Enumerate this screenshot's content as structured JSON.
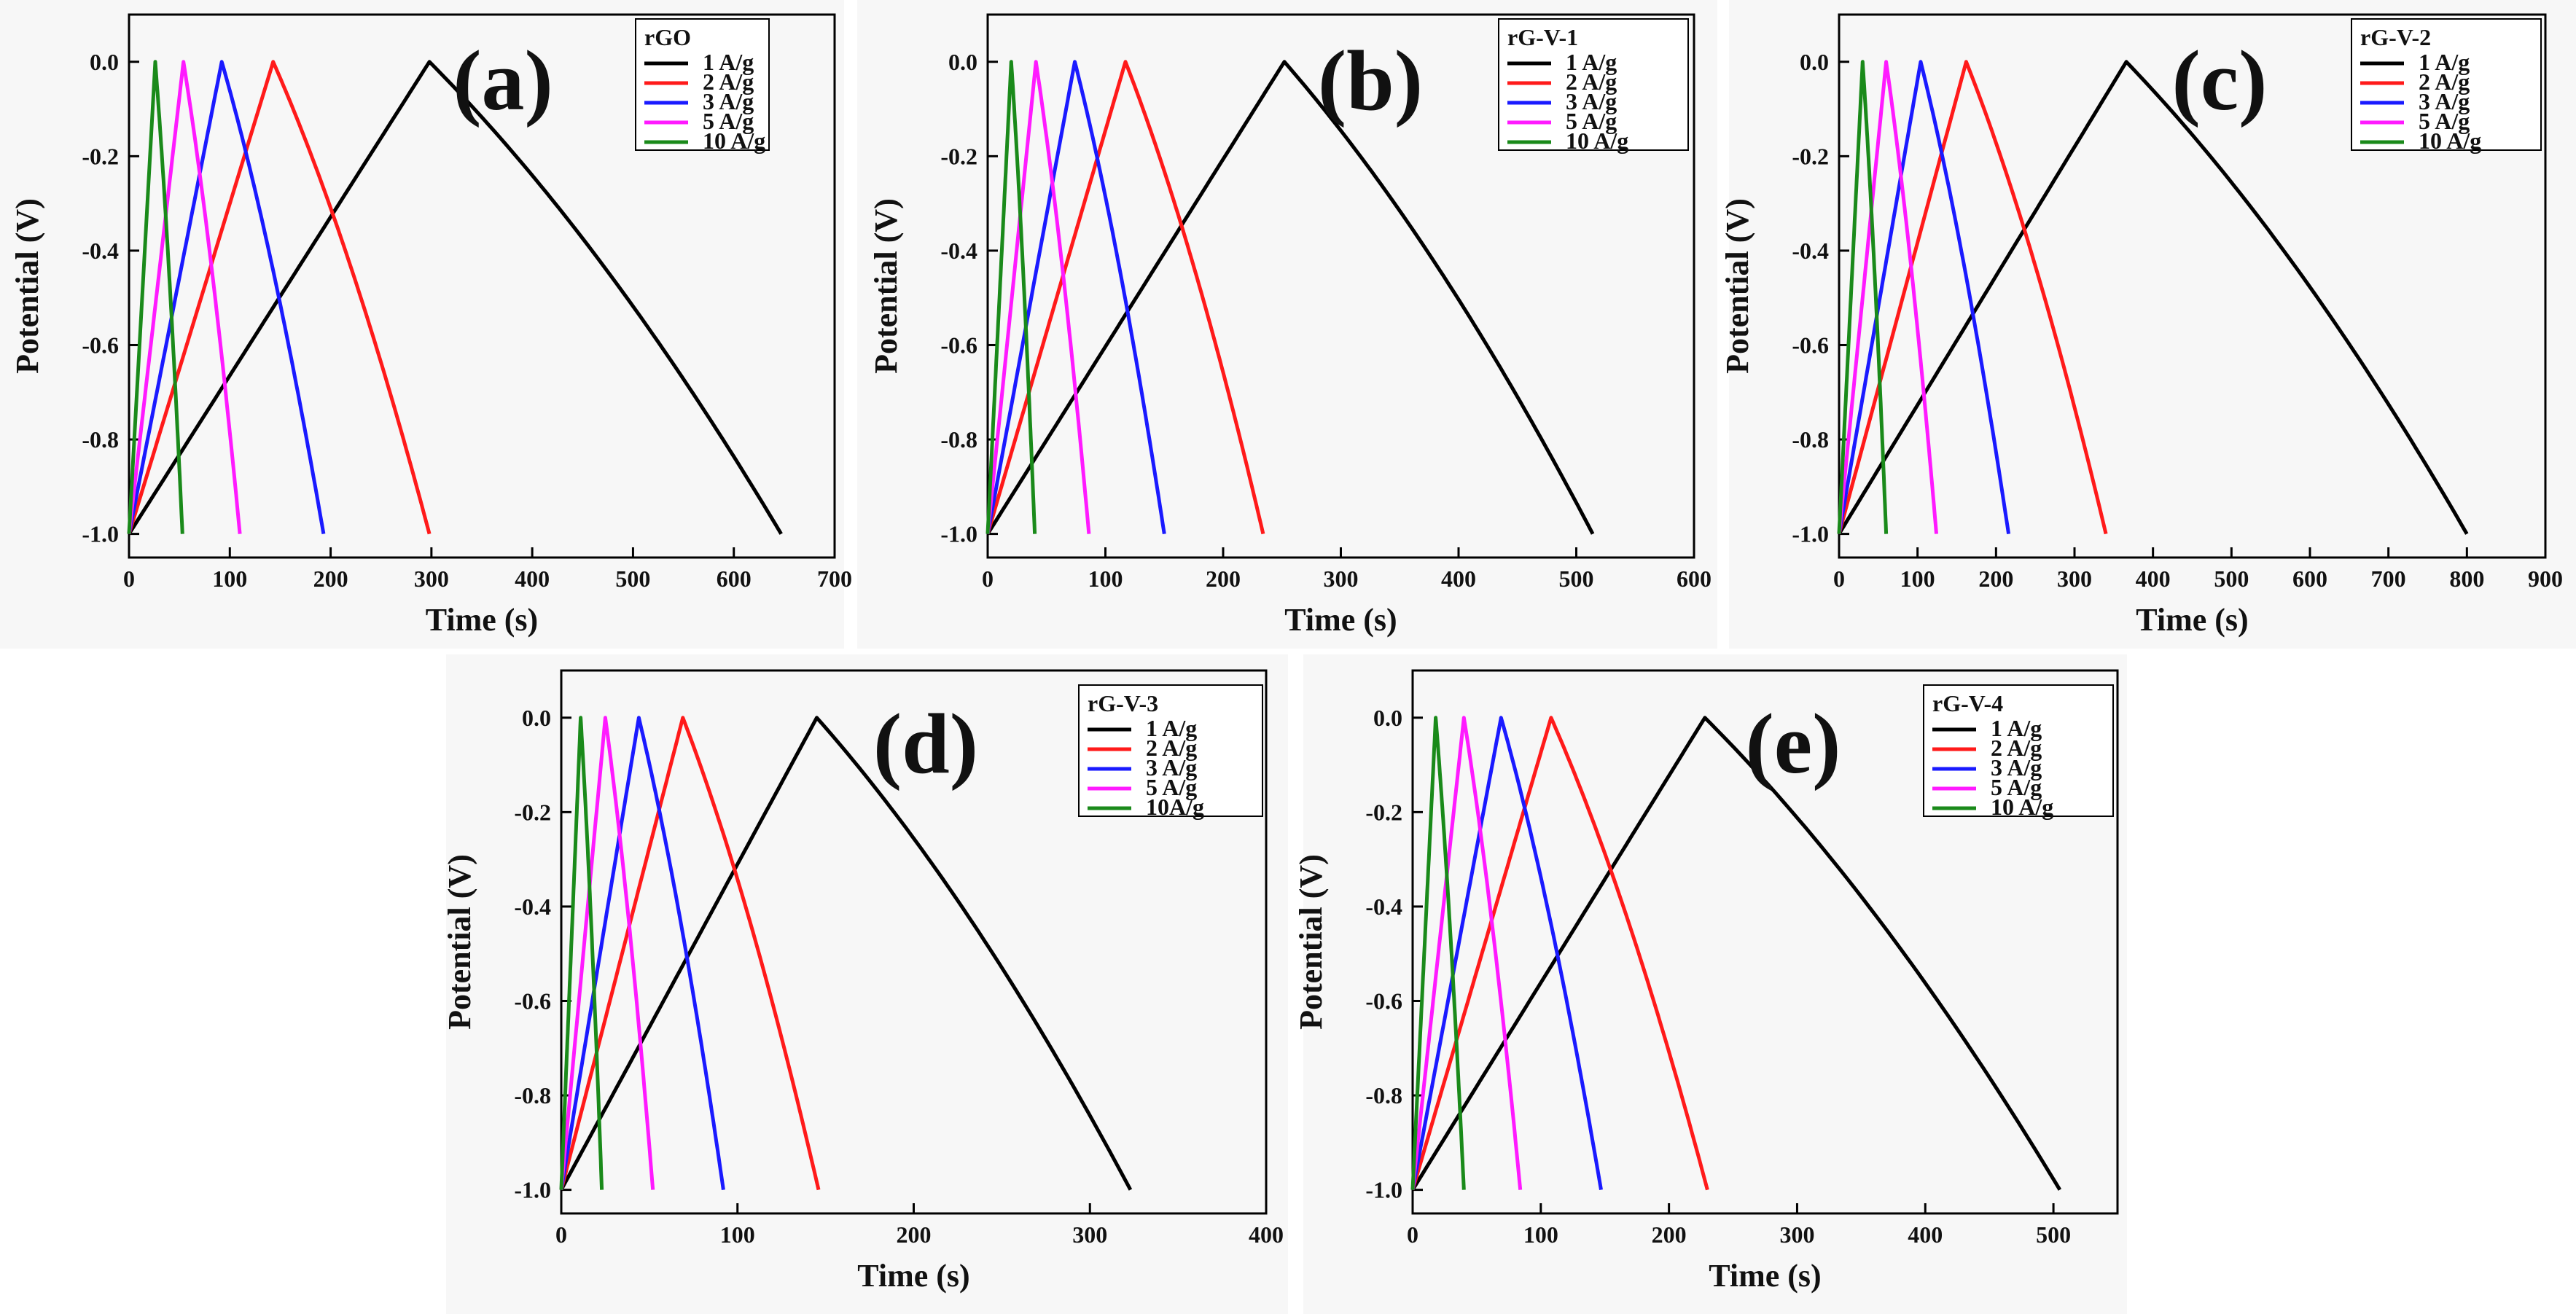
{
  "chart_data": [
    {
      "type": "line",
      "panel_label": "(a)",
      "legend_title": "rGO",
      "xlabel": "Time (s)",
      "ylabel": "Potential (V)",
      "xlim": [
        0,
        700
      ],
      "ylim": [
        -1.05,
        0.1
      ],
      "xticks": [
        0,
        100,
        200,
        300,
        400,
        500,
        600,
        700
      ],
      "yticks": [
        0.0,
        -0.2,
        -0.4,
        -0.6,
        -0.8,
        -1.0
      ],
      "ytick_labels": [
        "0.0",
        "-0.2",
        "-0.4",
        "-0.6",
        "-0.8",
        "-1.0"
      ],
      "series": [
        {
          "name": "1 A/g",
          "color": "#000000",
          "peak_time": 298,
          "end_time": 647
        },
        {
          "name": "2 A/g",
          "color": "#ff1a1a",
          "peak_time": 143,
          "end_time": 298
        },
        {
          "name": "3 A/g",
          "color": "#1a1aff",
          "peak_time": 92,
          "end_time": 193
        },
        {
          "name": "5 A/g",
          "color": "#ff1aff",
          "peak_time": 54,
          "end_time": 110
        },
        {
          "name": "10 A/g",
          "color": "#1a8a1a",
          "peak_time": 26,
          "end_time": 53
        }
      ]
    },
    {
      "type": "line",
      "panel_label": "(b)",
      "legend_title": "rG-V-1",
      "xlabel": "Time (s)",
      "ylabel": "Potential (V)",
      "xlim": [
        0,
        600
      ],
      "ylim": [
        -1.05,
        0.1
      ],
      "xticks": [
        0,
        100,
        200,
        300,
        400,
        500,
        600
      ],
      "yticks": [
        0.0,
        -0.2,
        -0.4,
        -0.6,
        -0.8,
        -1.0
      ],
      "ytick_labels": [
        "0.0",
        "-0.2",
        "-0.4",
        "-0.6",
        "-0.8",
        "-1.0"
      ],
      "series": [
        {
          "name": "1 A/g",
          "color": "#000000",
          "peak_time": 252,
          "end_time": 514
        },
        {
          "name": "2 A/g",
          "color": "#ff1a1a",
          "peak_time": 117,
          "end_time": 234
        },
        {
          "name": "3 A/g",
          "color": "#1a1aff",
          "peak_time": 74,
          "end_time": 150
        },
        {
          "name": "5 A/g",
          "color": "#ff1aff",
          "peak_time": 41,
          "end_time": 86
        },
        {
          "name": "10 A/g",
          "color": "#1a8a1a",
          "peak_time": 20,
          "end_time": 40
        }
      ]
    },
    {
      "type": "line",
      "panel_label": "(c)",
      "legend_title": "rG-V-2",
      "xlabel": "Time (s)",
      "ylabel": "Potential (V)",
      "xlim": [
        0,
        900
      ],
      "ylim": [
        -1.05,
        0.1
      ],
      "xticks": [
        0,
        100,
        200,
        300,
        400,
        500,
        600,
        700,
        800,
        900
      ],
      "yticks": [
        0.0,
        -0.2,
        -0.4,
        -0.6,
        -0.8,
        -1.0
      ],
      "ytick_labels": [
        "0.0",
        "-0.2",
        "-0.4",
        "-0.6",
        "-0.8",
        "-1.0"
      ],
      "series": [
        {
          "name": "1 A/g",
          "color": "#000000",
          "peak_time": 366,
          "end_time": 800
        },
        {
          "name": "2 A/g",
          "color": "#ff1a1a",
          "peak_time": 162,
          "end_time": 340
        },
        {
          "name": "3 A/g",
          "color": "#1a1aff",
          "peak_time": 104,
          "end_time": 216
        },
        {
          "name": "5 A/g",
          "color": "#ff1aff",
          "peak_time": 60,
          "end_time": 124
        },
        {
          "name": "10 A/g",
          "color": "#1a8a1a",
          "peak_time": 30,
          "end_time": 60
        }
      ]
    },
    {
      "type": "line",
      "panel_label": "(d)",
      "legend_title": "rG-V-3",
      "xlabel": "Time (s)",
      "ylabel": "Potential (V)",
      "xlim": [
        0,
        400
      ],
      "ylim": [
        -1.05,
        0.1
      ],
      "xticks": [
        0,
        100,
        200,
        300,
        400
      ],
      "yticks": [
        0.0,
        -0.2,
        -0.4,
        -0.6,
        -0.8,
        -1.0
      ],
      "ytick_labels": [
        "0.0",
        "-0.2",
        "-0.4",
        "-0.6",
        "-0.8",
        "-1.0"
      ],
      "series": [
        {
          "name": "1 A/g",
          "color": "#000000",
          "peak_time": 145,
          "end_time": 323
        },
        {
          "name": "2 A/g",
          "color": "#ff1a1a",
          "peak_time": 69,
          "end_time": 146
        },
        {
          "name": "3 A/g",
          "color": "#1a1aff",
          "peak_time": 44,
          "end_time": 92
        },
        {
          "name": "5 A/g",
          "color": "#ff1aff",
          "peak_time": 25,
          "end_time": 52
        },
        {
          "name": "10A/g",
          "color": "#1a8a1a",
          "peak_time": 11,
          "end_time": 23
        }
      ]
    },
    {
      "type": "line",
      "panel_label": "(e)",
      "legend_title": "rG-V-4",
      "xlabel": "Time (s)",
      "ylabel": "Potential (V)",
      "xlim": [
        0,
        550
      ],
      "ylim": [
        -1.05,
        0.1
      ],
      "xticks": [
        0,
        100,
        200,
        300,
        400,
        500
      ],
      "yticks": [
        0.0,
        -0.2,
        -0.4,
        -0.6,
        -0.8,
        -1.0
      ],
      "ytick_labels": [
        "0.0",
        "-0.2",
        "-0.4",
        "-0.6",
        "-0.8",
        "-1.0"
      ],
      "series": [
        {
          "name": "1 A/g",
          "color": "#000000",
          "peak_time": 228,
          "end_time": 505
        },
        {
          "name": "2 A/g",
          "color": "#ff1a1a",
          "peak_time": 108,
          "end_time": 230
        },
        {
          "name": "3 A/g",
          "color": "#1a1aff",
          "peak_time": 69,
          "end_time": 147
        },
        {
          "name": "5 A/g",
          "color": "#ff1aff",
          "peak_time": 40,
          "end_time": 84
        },
        {
          "name": "10 A/g",
          "color": "#1a8a1a",
          "peak_time": 18,
          "end_time": 40
        }
      ]
    }
  ]
}
